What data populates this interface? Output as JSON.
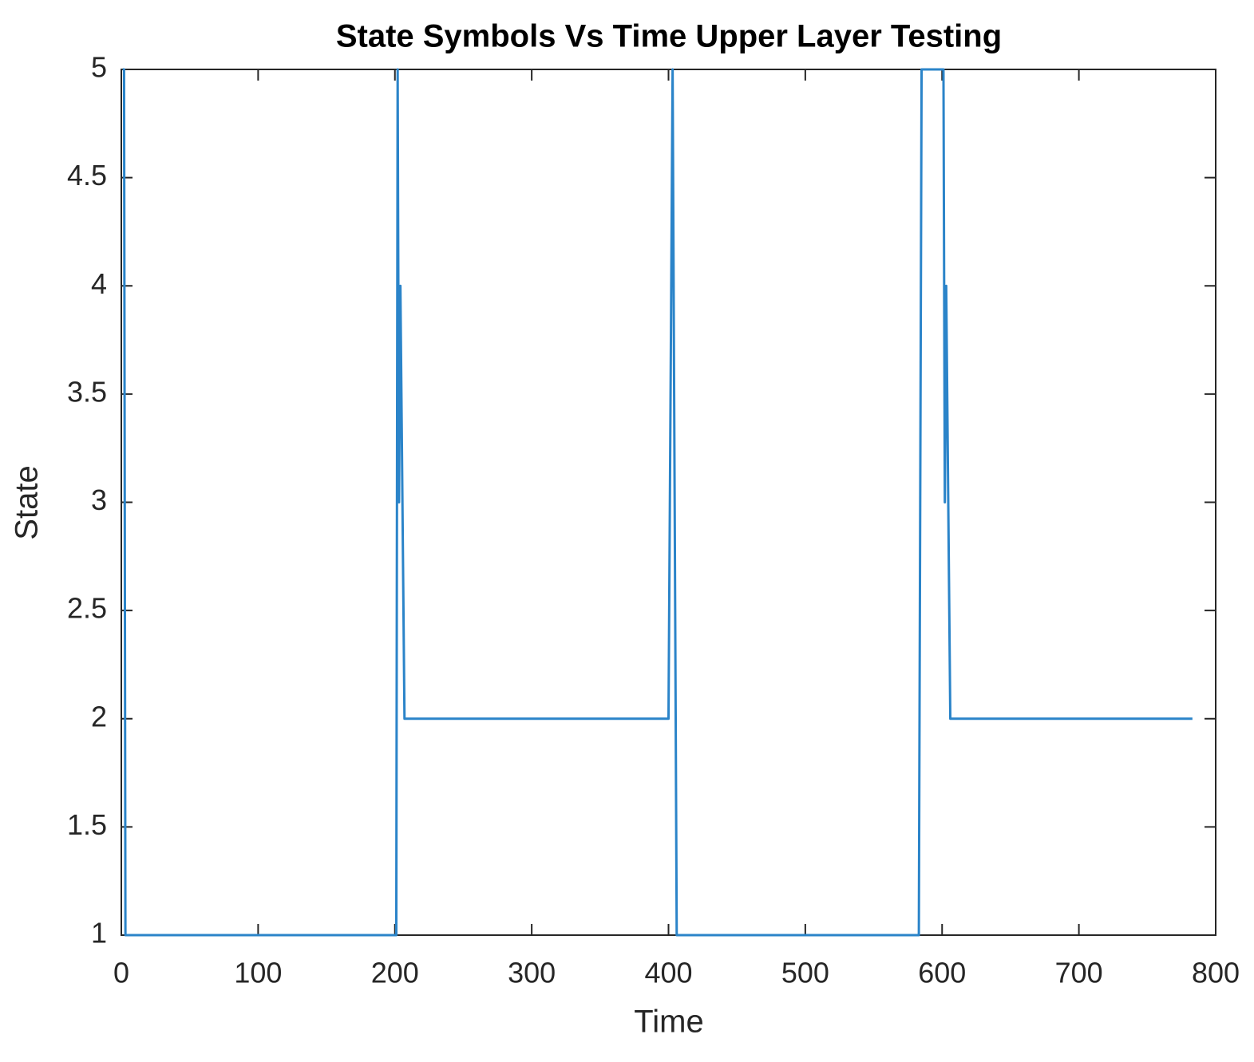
{
  "chart_data": {
    "type": "line",
    "title": "State Symbols Vs Time Upper Layer Testing",
    "xlabel": "Time",
    "ylabel": "State",
    "x": [
      1,
      2,
      3,
      201,
      202,
      203,
      204,
      207,
      400,
      403,
      406,
      583,
      585,
      601,
      602,
      603,
      606,
      783
    ],
    "series": [
      {
        "color": "#2b84c9",
        "values": [
          5,
          5,
          1,
          1,
          5,
          3,
          4,
          2,
          2,
          5,
          1,
          1,
          5,
          5,
          3,
          4,
          2,
          2
        ]
      }
    ],
    "xlim": [
      0,
      800
    ],
    "xticks": [
      0,
      100,
      200,
      300,
      400,
      500,
      600,
      700,
      800
    ],
    "ylim": [
      1,
      5
    ],
    "yticks": [
      1,
      1.5,
      2,
      2.5,
      3,
      3.5,
      4,
      4.5,
      5
    ],
    "grid": false,
    "box": true
  }
}
